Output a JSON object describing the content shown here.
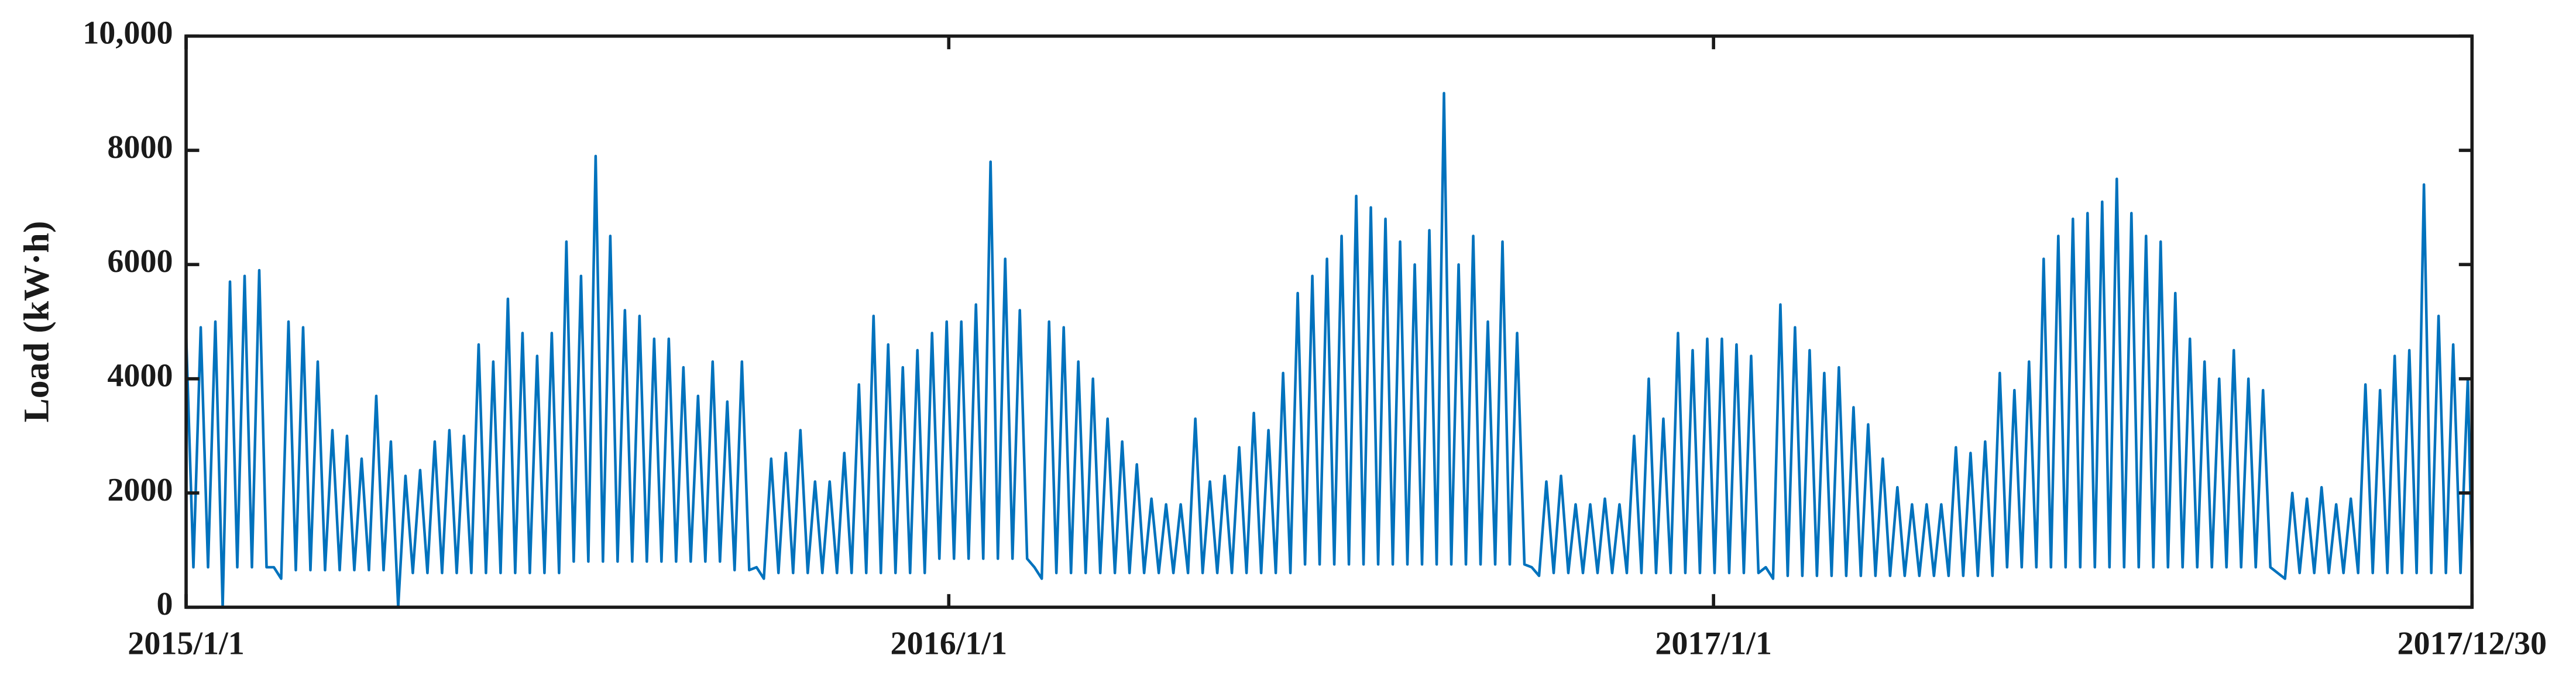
{
  "chart_data": {
    "type": "line",
    "y_label": "Load (kW·h)",
    "color": "#0072bd",
    "xlim": [
      0,
      1094
    ],
    "xticks": [
      {
        "value": 0,
        "label": "2015/1/1"
      },
      {
        "value": 365,
        "label": "2016/1/1"
      },
      {
        "value": 731,
        "label": "2017/1/1"
      },
      {
        "value": 1094,
        "label": "2017/12/30"
      }
    ],
    "ylim": [
      0,
      10000
    ],
    "yticks": [
      0,
      2000,
      4000,
      6000,
      8000,
      {
        "value": 10000,
        "label": "10,000"
      }
    ],
    "grid": false,
    "x": [
      0,
      3.5,
      7,
      10.5,
      14,
      17.5,
      21,
      24.5,
      28,
      31.5,
      35,
      38.5,
      42,
      45.5,
      49,
      52.5,
      56,
      59.5,
      63,
      66.5,
      70,
      73.5,
      77,
      80.5,
      84,
      87.5,
      91,
      94.5,
      98,
      101.5,
      105,
      108.5,
      112,
      115.5,
      119,
      122.5,
      126,
      129.5,
      133,
      136.5,
      140,
      143.5,
      147,
      150.5,
      154,
      157.5,
      161,
      164.5,
      168,
      171.5,
      175,
      178.5,
      182,
      185.5,
      189,
      192.5,
      196,
      199.5,
      203,
      206.5,
      210,
      213.5,
      217,
      220.5,
      224,
      227.5,
      231,
      234.5,
      238,
      241.5,
      245,
      248.5,
      252,
      255.5,
      259,
      262.5,
      266,
      269.5,
      273,
      276.5,
      280,
      283.5,
      287,
      290.5,
      294,
      297.5,
      301,
      304.5,
      308,
      311.5,
      315,
      318.5,
      322,
      325.5,
      329,
      332.5,
      336,
      339.5,
      343,
      346.5,
      350,
      353.5,
      357,
      360.5,
      364,
      367.5,
      371,
      374.5,
      378,
      381.5,
      385,
      388.5,
      392,
      395.5,
      399,
      402.5,
      406,
      409.5,
      413,
      416.5,
      420,
      423.5,
      427,
      430.5,
      434,
      437.5,
      441,
      444.5,
      448,
      451.5,
      455,
      458.5,
      462,
      465.5,
      469,
      472.5,
      476,
      479.5,
      483,
      486.5,
      490,
      493.5,
      497,
      500.5,
      504,
      507.5,
      511,
      514.5,
      518,
      521.5,
      525,
      528.5,
      532,
      535.5,
      539,
      542.5,
      546,
      549.5,
      553,
      556.5,
      560,
      563.5,
      567,
      570.5,
      574,
      577.5,
      581,
      584.5,
      588,
      591.5,
      595,
      598.5,
      602,
      605.5,
      609,
      612.5,
      616,
      619.5,
      623,
      626.5,
      630,
      633.5,
      637,
      640.5,
      644,
      647.5,
      651,
      654.5,
      658,
      661.5,
      665,
      668.5,
      672,
      675.5,
      679,
      682.5,
      686,
      689.5,
      693,
      696.5,
      700,
      703.5,
      707,
      710.5,
      714,
      717.5,
      721,
      724.5,
      728,
      731.5,
      735,
      738.5,
      742,
      745.5,
      749,
      752.5,
      756,
      759.5,
      763,
      766.5,
      770,
      773.5,
      777,
      780.5,
      784,
      787.5,
      791,
      794.5,
      798,
      801.5,
      805,
      808.5,
      812,
      815.5,
      819,
      822.5,
      826,
      829.5,
      833,
      836.5,
      840,
      843.5,
      847,
      850.5,
      854,
      857.5,
      861,
      864.5,
      868,
      871.5,
      875,
      878.5,
      882,
      885.5,
      889,
      892.5,
      896,
      899.5,
      903,
      906.5,
      910,
      913.5,
      917,
      920.5,
      924,
      927.5,
      931,
      934.5,
      938,
      941.5,
      945,
      948.5,
      952,
      955.5,
      959,
      962.5,
      966,
      969.5,
      973,
      976.5,
      980,
      983.5,
      987,
      990.5,
      994,
      997.5,
      1001,
      1004.5,
      1008,
      1011.5,
      1015,
      1018.5,
      1022,
      1025.5,
      1029,
      1032.5,
      1036,
      1039.5,
      1043,
      1046.5,
      1050,
      1053.5,
      1057,
      1060.5,
      1064,
      1067.5,
      1071,
      1074.5,
      1078,
      1081.5,
      1085,
      1088.5,
      1092,
      1094
    ],
    "values": [
      4800,
      700,
      4900,
      700,
      5000,
      0,
      5700,
      700,
      5800,
      700,
      5900,
      700,
      700,
      500,
      5000,
      650,
      4900,
      650,
      4300,
      650,
      3100,
      650,
      3000,
      650,
      2600,
      650,
      3700,
      650,
      2900,
      0,
      2300,
      600,
      2400,
      600,
      2900,
      600,
      3100,
      600,
      3000,
      600,
      4600,
      600,
      4300,
      600,
      5400,
      600,
      4800,
      600,
      4400,
      600,
      4800,
      600,
      6400,
      800,
      5800,
      800,
      7900,
      800,
      6500,
      800,
      5200,
      800,
      5100,
      800,
      4700,
      800,
      4700,
      800,
      4200,
      800,
      3700,
      800,
      4300,
      800,
      3600,
      650,
      4300,
      650,
      700,
      500,
      2600,
      600,
      2700,
      600,
      3100,
      600,
      2200,
      600,
      2200,
      600,
      2700,
      600,
      3900,
      600,
      5100,
      600,
      4600,
      600,
      4200,
      600,
      4500,
      600,
      4800,
      850,
      5000,
      850,
      5000,
      850,
      5300,
      850,
      7800,
      850,
      6100,
      850,
      5200,
      850,
      700,
      500,
      5000,
      600,
      4900,
      600,
      4300,
      600,
      4000,
      600,
      3300,
      600,
      2900,
      600,
      2500,
      600,
      1900,
      600,
      1800,
      600,
      1800,
      600,
      3300,
      600,
      2200,
      600,
      2300,
      600,
      2800,
      600,
      3400,
      600,
      3100,
      600,
      4100,
      600,
      5500,
      750,
      5800,
      750,
      6100,
      750,
      6500,
      750,
      7200,
      750,
      7000,
      750,
      6800,
      750,
      6400,
      750,
      6000,
      750,
      6600,
      750,
      9000,
      750,
      6000,
      750,
      6500,
      750,
      5000,
      750,
      6400,
      750,
      4800,
      750,
      700,
      550,
      2200,
      600,
      2300,
      600,
      1800,
      600,
      1800,
      600,
      1900,
      600,
      1800,
      600,
      3000,
      600,
      4000,
      600,
      3300,
      600,
      4800,
      600,
      4500,
      600,
      4700,
      600,
      4700,
      600,
      4600,
      600,
      4400,
      600,
      700,
      500,
      5300,
      550,
      4900,
      550,
      4500,
      550,
      4100,
      550,
      4200,
      550,
      3500,
      550,
      3200,
      550,
      2600,
      550,
      2100,
      550,
      1800,
      550,
      1800,
      550,
      1800,
      550,
      2800,
      550,
      2700,
      550,
      2900,
      550,
      4100,
      700,
      3800,
      700,
      4300,
      700,
      6100,
      700,
      6500,
      700,
      6800,
      700,
      6900,
      700,
      7100,
      700,
      7500,
      700,
      6900,
      700,
      6500,
      700,
      6400,
      700,
      5500,
      700,
      4700,
      700,
      4300,
      700,
      4000,
      700,
      4500,
      700,
      4000,
      700,
      3800,
      700,
      600,
      500,
      2000,
      600,
      1900,
      600,
      2100,
      600,
      1800,
      600,
      1900,
      600,
      3900,
      600,
      3800,
      600,
      4400,
      600,
      4500,
      600,
      7400,
      600,
      5100,
      600,
      4600,
      600,
      4000,
      700
    ]
  }
}
